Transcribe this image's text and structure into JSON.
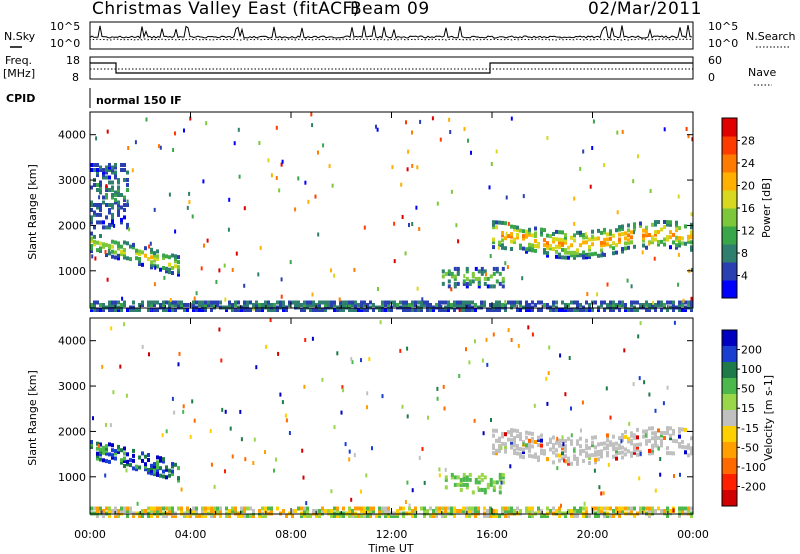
{
  "header": {
    "title": "Christmas Valley East (fitACF)",
    "beam": "Beam 09",
    "date": "02/Mar/2011"
  },
  "strips": {
    "nsky_label": "N.Sky",
    "nsearch_label": "N.Search",
    "freq_label_1": "Freq.",
    "freq_label_2": "[MHz]",
    "nave_label": "Nave",
    "cpid_label": "CPID",
    "cpid_value": "normal 150 IF",
    "noise_ticks": [
      "10^5",
      "10^0"
    ],
    "freq_ticks": [
      "18",
      "8"
    ],
    "nave_ticks": [
      "60",
      "0"
    ]
  },
  "colors": {
    "power": [
      "#0000ff",
      "#2a3fb0",
      "#2f7f6e",
      "#3aa64a",
      "#7dc83a",
      "#d8d820",
      "#ffb000",
      "#ff7a00",
      "#ff3c00",
      "#e00000"
    ],
    "velocity": [
      "#0000c0",
      "#1a3fd0",
      "#1f7a4a",
      "#4cb84c",
      "#9ad64a",
      "#c0c0c0",
      "#ffd000",
      "#ffa000",
      "#ff6a00",
      "#ff2000",
      "#d00000"
    ]
  },
  "chart_data": [
    {
      "type": "heatmap",
      "panel": "power",
      "ylabel": "Slant Range [km]",
      "xlabel": "",
      "x_ticks": [
        "00:00",
        "04:00",
        "08:00",
        "12:00",
        "16:00",
        "20:00",
        "00:00"
      ],
      "y_ticks": [
        "1000",
        "2000",
        "3000",
        "4000"
      ],
      "ylim": [
        180,
        4500
      ],
      "xlim_hours": [
        0,
        24
      ],
      "colorbar_label": "Power [dB]",
      "colorbar_ticks": [
        "4",
        "8",
        "12",
        "16",
        "20",
        "24",
        "28"
      ],
      "regions": [
        {
          "t0": 0.0,
          "t1": 3.5,
          "r0": 1100,
          "r1": 1800,
          "level": "medium-high"
        },
        {
          "t0": 0.0,
          "t1": 1.5,
          "r0": 2000,
          "r1": 3400,
          "level": "low"
        },
        {
          "t0": 14.0,
          "t1": 16.5,
          "r0": 700,
          "r1": 1100,
          "level": "medium"
        },
        {
          "t0": 16.0,
          "t1": 24.0,
          "r0": 1400,
          "r1": 2100,
          "level": "high"
        },
        {
          "t0": 0.0,
          "t1": 24.0,
          "r0": 180,
          "r1": 400,
          "level": "low"
        }
      ]
    },
    {
      "type": "heatmap",
      "panel": "velocity",
      "ylabel": "Slant Range [km]",
      "xlabel": "Time UT",
      "x_ticks": [
        "00:00",
        "04:00",
        "08:00",
        "12:00",
        "16:00",
        "20:00",
        "00:00"
      ],
      "y_ticks": [
        "1000",
        "2000",
        "3000",
        "4000"
      ],
      "ylim": [
        180,
        4500
      ],
      "xlim_hours": [
        0,
        24
      ],
      "colorbar_label": "Velocity [m s-1]",
      "colorbar_ticks": [
        "200",
        "100",
        "50",
        "15",
        "-15",
        "-50",
        "-100",
        "-200"
      ],
      "regions": [
        {
          "t0": 0.0,
          "t1": 3.5,
          "r0": 1100,
          "r1": 1800,
          "level": "positive"
        },
        {
          "t0": 14.0,
          "t1": 16.5,
          "r0": 700,
          "r1": 1100,
          "level": "positive-small"
        },
        {
          "t0": 16.0,
          "t1": 24.0,
          "r0": 1300,
          "r1": 2200,
          "level": "near-zero"
        },
        {
          "t0": 0.0,
          "t1": 24.0,
          "r0": 180,
          "r1": 400,
          "level": "mixed"
        }
      ]
    }
  ]
}
